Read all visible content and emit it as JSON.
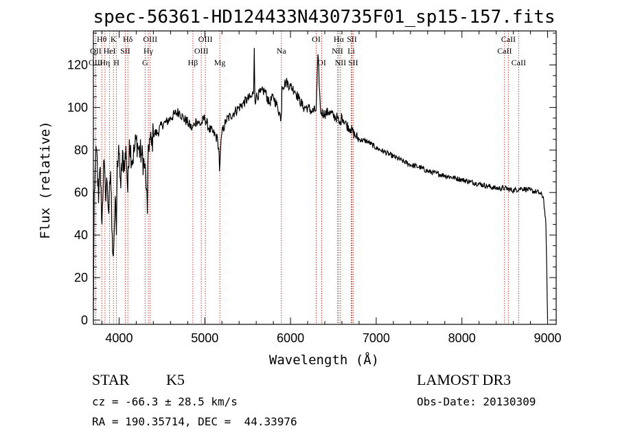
{
  "chart_data": {
    "type": "line",
    "title": "spec-56361-HD124433N430735F01_sp15-157.fits",
    "xlabel": "Wavelength (Å)",
    "ylabel": "Flux (relative)",
    "xlim": [
      3700,
      9100
    ],
    "ylim": [
      -2,
      136
    ],
    "xticks": [
      4000,
      5000,
      6000,
      7000,
      8000,
      9000
    ],
    "xtick_labels": [
      "4000",
      "5000",
      "6000",
      "7000",
      "8000",
      "9000"
    ],
    "yticks": [
      0,
      20,
      40,
      60,
      80,
      100,
      120
    ],
    "ytick_labels": [
      "0",
      "20",
      "40",
      "60",
      "80",
      "100",
      "120"
    ],
    "series": [
      {
        "name": "flux",
        "x": [
          3700,
          3710,
          3720,
          3740,
          3760,
          3780,
          3800,
          3820,
          3840,
          3860,
          3880,
          3900,
          3920,
          3933,
          3945,
          3960,
          3968,
          3980,
          4000,
          4020,
          4040,
          4060,
          4080,
          4101,
          4120,
          4150,
          4180,
          4200,
          4230,
          4260,
          4300,
          4320,
          4330,
          4340,
          4360,
          4380,
          4400,
          4450,
          4500,
          4550,
          4600,
          4650,
          4700,
          4750,
          4800,
          4850,
          4880,
          4900,
          4950,
          5000,
          5050,
          5100,
          5150,
          5167,
          5172,
          5183,
          5200,
          5250,
          5300,
          5350,
          5400,
          5450,
          5500,
          5550,
          5570,
          5577,
          5585,
          5600,
          5650,
          5700,
          5750,
          5800,
          5850,
          5890,
          5896,
          5900,
          5950,
          6000,
          6050,
          6100,
          6150,
          6200,
          6250,
          6300,
          6320,
          6350,
          6400,
          6450,
          6500,
          6550,
          6563,
          6580,
          6600,
          6650,
          6700,
          6750,
          6800,
          6900,
          7000,
          7100,
          7200,
          7300,
          7400,
          7500,
          7600,
          7700,
          7800,
          7900,
          8000,
          8100,
          8200,
          8300,
          8400,
          8500,
          8600,
          8700,
          8800,
          8900,
          8950,
          8980,
          9000
        ],
        "y": [
          5,
          60,
          70,
          80,
          55,
          72,
          45,
          75,
          60,
          65,
          50,
          70,
          40,
          30,
          45,
          55,
          40,
          75,
          78,
          62,
          80,
          70,
          82,
          60,
          85,
          75,
          80,
          85,
          80,
          78,
          72,
          62,
          50,
          82,
          85,
          82,
          88,
          88,
          92,
          93,
          95,
          97,
          98,
          95,
          93,
          90,
          92,
          94,
          92,
          95,
          90,
          88,
          85,
          78,
          70,
          80,
          88,
          94,
          96,
          98,
          100,
          102,
          104,
          105,
          108,
          128,
          103,
          105,
          107,
          108,
          102,
          105,
          100,
          95,
          98,
          110,
          112,
          110,
          108,
          104,
          100,
          100,
          98,
          99,
          125,
          98,
          97,
          98,
          96,
          95,
          93,
          92,
          96,
          92,
          90,
          87,
          85,
          84,
          81,
          79,
          77,
          75,
          73,
          72,
          70,
          69,
          68,
          67,
          66,
          65,
          64,
          63,
          62,
          62,
          61,
          62,
          61,
          60,
          58,
          45,
          0
        ]
      }
    ],
    "spectral_lines": [
      {
        "name": "Hθ",
        "wavelength": 3798,
        "row": 1
      },
      {
        "name": "OII",
        "wavelength": 3727,
        "row": 2
      },
      {
        "name": "OIII",
        "wavelength": 3727,
        "row": 3
      },
      {
        "name": "K",
        "wavelength": 3934,
        "row": 1
      },
      {
        "name": "HeI",
        "wavelength": 3889,
        "row": 2
      },
      {
        "name": "Hη",
        "wavelength": 3835,
        "row": 3
      },
      {
        "name": "H",
        "wavelength": 3969,
        "row": 3
      },
      {
        "name": "Hδ",
        "wavelength": 4102,
        "row": 1
      },
      {
        "name": "SII",
        "wavelength": 4072,
        "row": 2
      },
      {
        "name": "OIII",
        "wavelength": 4363,
        "row": 1
      },
      {
        "name": "Hγ",
        "wavelength": 4341,
        "row": 2
      },
      {
        "name": "G",
        "wavelength": 4304,
        "row": 3
      },
      {
        "name": "Hβ",
        "wavelength": 4861,
        "row": 3
      },
      {
        "name": "OIII",
        "wavelength": 5007,
        "row": 1
      },
      {
        "name": "OIII",
        "wavelength": 4959,
        "row": 2
      },
      {
        "name": "Mg",
        "wavelength": 5175,
        "row": 3
      },
      {
        "name": "Na",
        "wavelength": 5893,
        "row": 2
      },
      {
        "name": "OI",
        "wavelength": 6300,
        "row": 1
      },
      {
        "name": "OI",
        "wavelength": 6364,
        "row": 3
      },
      {
        "name": "Hα",
        "wavelength": 6563,
        "row": 1
      },
      {
        "name": "SII",
        "wavelength": 6716,
        "row": 1
      },
      {
        "name": "NII",
        "wavelength": 6548,
        "row": 2
      },
      {
        "name": "Li",
        "wavelength": 6708,
        "row": 2
      },
      {
        "name": "NII",
        "wavelength": 6583,
        "row": 3
      },
      {
        "name": "SII",
        "wavelength": 6731,
        "row": 3
      },
      {
        "name": "CaII",
        "wavelength": 8542,
        "row": 1
      },
      {
        "name": "CaII",
        "wavelength": 8498,
        "row": 2
      },
      {
        "name": "CaII",
        "wavelength": 8662,
        "row": 3
      }
    ]
  },
  "info": {
    "object_class": "STAR",
    "subclass": "K5",
    "survey": "LAMOST DR3",
    "redshift_line": "cz = -66.3 ± 28.5 km/s",
    "obs_date_line": "Obs-Date: 20130309",
    "coords_line": "RA = 190.35714, DEC =  44.33976"
  },
  "colors": {
    "line": "#000000",
    "marker_lines": "#c0392b",
    "background": "#ffffff"
  }
}
